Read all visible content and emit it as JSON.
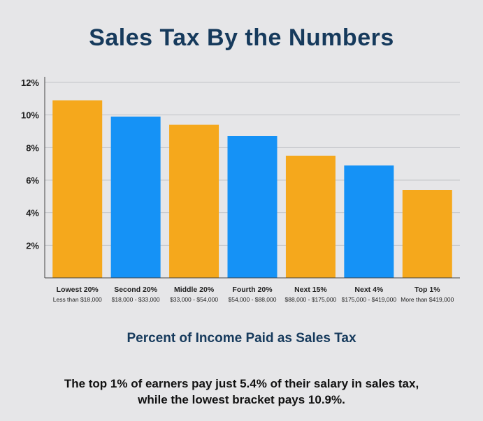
{
  "chart_data": {
    "type": "bar",
    "title": "Sales Tax By the Numbers",
    "subtitle": "Percent of Income Paid as Sales Tax",
    "caption": [
      "The top 1% of earners pay just 5.4% of their salary in sales tax,",
      "while the lowest bracket pays 10.9%."
    ],
    "categories": [
      "Lowest 20%",
      "Second 20%",
      "Middle 20%",
      "Fourth 20%",
      "Next 15%",
      "Next 4%",
      "Top 1%"
    ],
    "category_sublabels": [
      "Less than $18,000",
      "$18,000 - $33,000",
      "$33,000 - $54,000",
      "$54,000 - $88,000",
      "$88,000 - $175,000",
      "$175,000 - $419,000",
      "More than $419,000"
    ],
    "values": [
      10.9,
      9.9,
      9.4,
      8.7,
      7.5,
      6.9,
      5.4
    ],
    "bar_colors": [
      "#f5a81c",
      "#1592f6",
      "#f5a81c",
      "#1592f6",
      "#f5a81c",
      "#1592f6",
      "#f5a81c"
    ],
    "ylim": [
      0,
      12
    ],
    "yticks": [
      2,
      4,
      6,
      8,
      10,
      12
    ],
    "ytick_labels": [
      "2%",
      "4%",
      "6%",
      "8%",
      "10%",
      "12%"
    ],
    "xlabel": "",
    "ylabel": "",
    "grid": true
  }
}
